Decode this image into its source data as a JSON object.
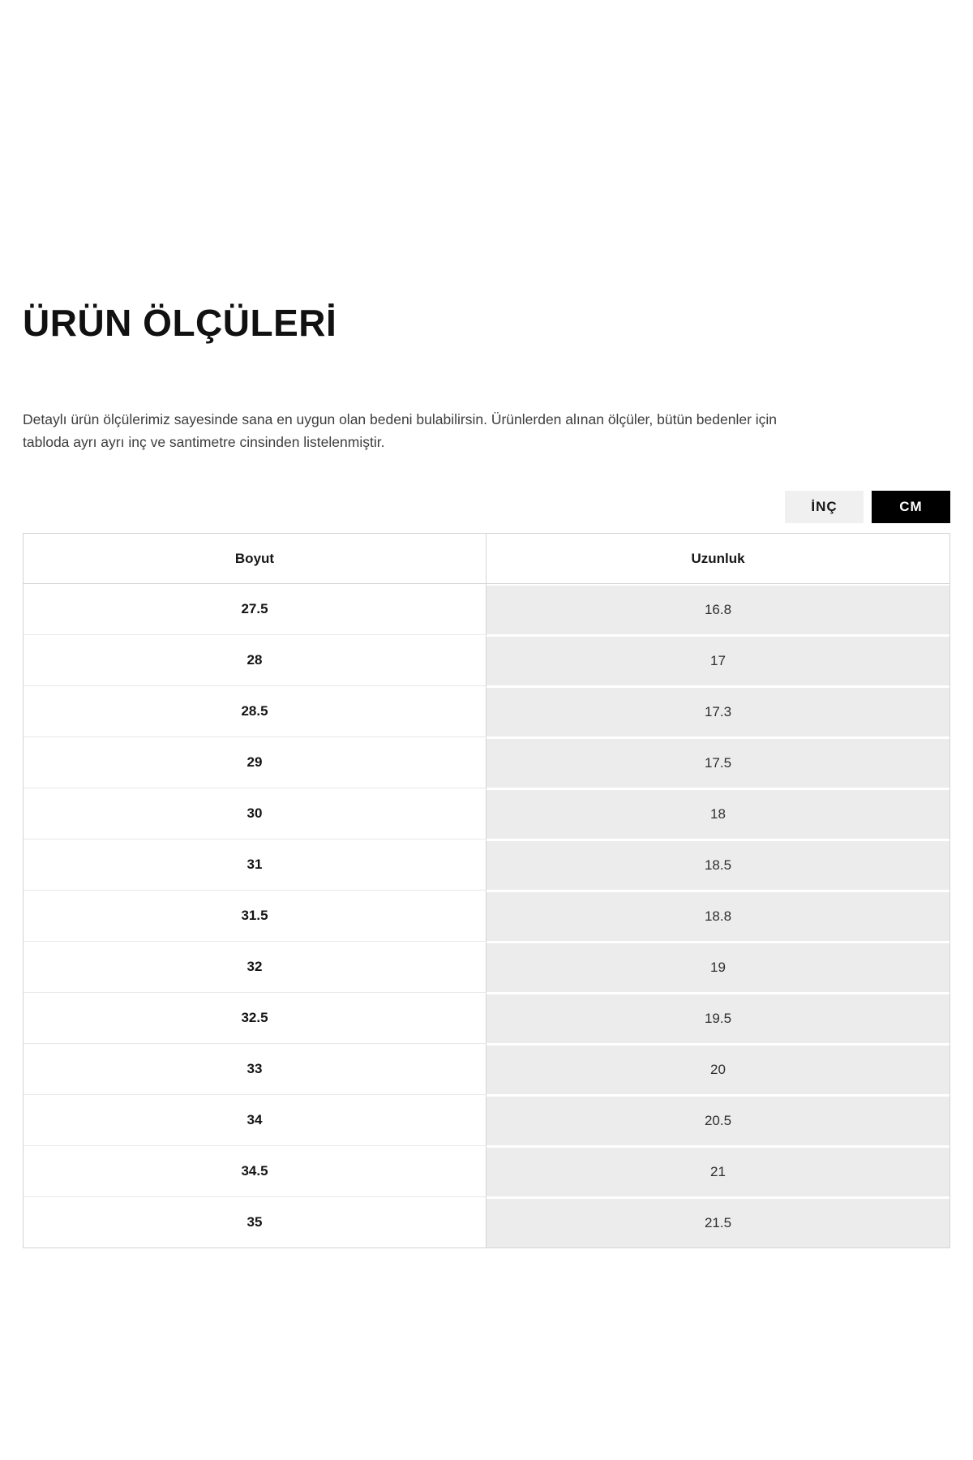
{
  "page_title": "ÜRÜN ÖLÇÜLERİ",
  "intro": {
    "line1": "Detaylı ürün ölçülerimiz sayesinde sana en uygun olan bedeni bulabilirsin. Ürünlerden alınan ölçüler, bütün bedenler için",
    "line2": "tabloda ayrı ayrı inç ve santimetre cinsinden listelenmiştir."
  },
  "unit_toggle": {
    "inch_label": "İNÇ",
    "cm_label": "CM",
    "selected": "CM"
  },
  "size_table": {
    "headers": {
      "size": "Boyut",
      "len": "Uzunluk"
    },
    "rows": [
      {
        "size": "27.5",
        "len": "16.8"
      },
      {
        "size": "28",
        "len": "17"
      },
      {
        "size": "28.5",
        "len": "17.3"
      },
      {
        "size": "29",
        "len": "17.5"
      },
      {
        "size": "30",
        "len": "18"
      },
      {
        "size": "31",
        "len": "18.5"
      },
      {
        "size": "31.5",
        "len": "18.8"
      },
      {
        "size": "32",
        "len": "19"
      },
      {
        "size": "32.5",
        "len": "19.5"
      },
      {
        "size": "33",
        "len": "20"
      },
      {
        "size": "34",
        "len": "20.5"
      },
      {
        "size": "34.5",
        "len": "21"
      },
      {
        "size": "35",
        "len": "21.5"
      }
    ]
  },
  "colors": {
    "active_toggle_bg": "#000000",
    "active_toggle_text": "#ffffff",
    "inactive_toggle_bg": "#f0f0f0",
    "alt_cell_bg": "#ececec",
    "border": "#d4d4d4"
  }
}
